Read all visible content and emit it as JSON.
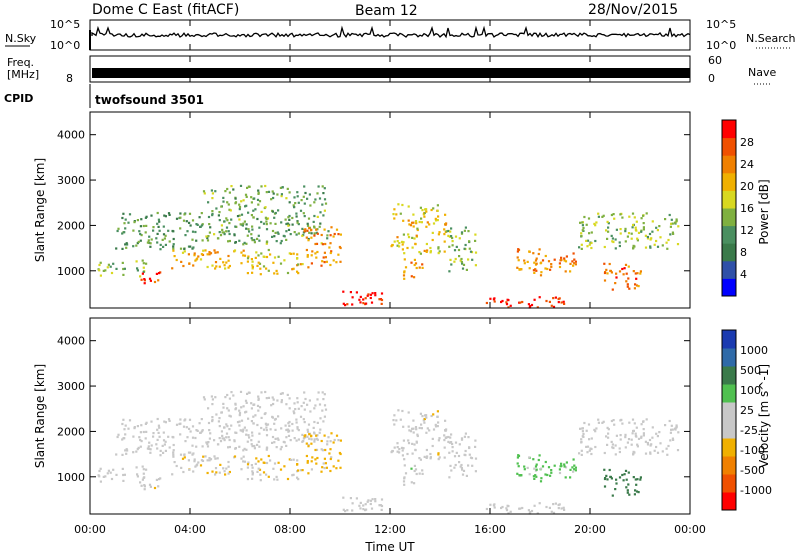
{
  "header": {
    "station": "Dome C East (fitACF)",
    "beam": "Beam 12",
    "date": "28/Nov/2015"
  },
  "noise_panel": {
    "left_label": "N.Sky",
    "left_ticks": [
      "10^5",
      "10^0"
    ],
    "right_label": "N.Search",
    "right_ticks": [
      "10^5",
      "10^0"
    ]
  },
  "freq_panel": {
    "left_label_line1": "Freq.",
    "left_label_line2": "[MHz]",
    "left_tick": "8",
    "right_label": "Nave",
    "right_ticks": [
      "60",
      "0"
    ]
  },
  "cpid": {
    "label": "CPID",
    "value": "twofsound 3501"
  },
  "x_axis": {
    "label": "Time UT",
    "ticks": [
      "00:00",
      "04:00",
      "08:00",
      "12:00",
      "16:00",
      "20:00",
      "00:00"
    ]
  },
  "colors": {
    "power_scale": [
      "#0000ff",
      "#2f50a8",
      "#3a7a4a",
      "#4a8f60",
      "#7fb040",
      "#d8d820",
      "#f0b000",
      "#f08000",
      "#f05000",
      "#ff0000"
    ],
    "velocity_scale": [
      "#ff0000",
      "#f05000",
      "#f08000",
      "#f0b000",
      "#c8c8c8",
      "#c8c8c8",
      "#50c050",
      "#3a7a4a",
      "#2f6aa8",
      "#1a3ab0"
    ]
  },
  "chart_data": [
    {
      "type": "heatmap",
      "title": "",
      "xlabel": "",
      "ylabel": "Slant Range [km]",
      "xlim": [
        0,
        24
      ],
      "ylim": [
        180,
        4500
      ],
      "yticks": [
        1000,
        2000,
        3000,
        4000
      ],
      "colorbar": {
        "label": "Power [dB]",
        "ticks": [
          "4",
          "8",
          "12",
          "16",
          "20",
          "24",
          "28"
        ],
        "range": [
          0,
          30
        ]
      },
      "echo_regions": [
        {
          "t_start": 0.3,
          "t_end": 2.2,
          "r_start": 900,
          "r_end": 1250,
          "value": 14
        },
        {
          "t_start": 1.0,
          "t_end": 4.5,
          "r_start": 1500,
          "r_end": 2300,
          "value": 10
        },
        {
          "t_start": 2.0,
          "t_end": 3.0,
          "r_start": 700,
          "r_end": 1000,
          "value": 26
        },
        {
          "t_start": 3.2,
          "t_end": 5.8,
          "r_start": 1050,
          "r_end": 1500,
          "value": 20
        },
        {
          "t_start": 4.5,
          "t_end": 9.5,
          "r_start": 1600,
          "r_end": 2900,
          "value": 12
        },
        {
          "t_start": 6.0,
          "t_end": 8.5,
          "r_start": 950,
          "r_end": 1500,
          "value": 18
        },
        {
          "t_start": 8.5,
          "t_end": 10.0,
          "r_start": 1100,
          "r_end": 2000,
          "value": 22
        },
        {
          "t_start": 10.0,
          "t_end": 11.8,
          "r_start": 200,
          "r_end": 600,
          "value": 28
        },
        {
          "t_start": 12.0,
          "t_end": 14.2,
          "r_start": 1400,
          "r_end": 2500,
          "value": 18
        },
        {
          "t_start": 12.5,
          "t_end": 13.3,
          "r_start": 800,
          "r_end": 1300,
          "value": 22
        },
        {
          "t_start": 14.2,
          "t_end": 15.4,
          "r_start": 1000,
          "r_end": 2000,
          "value": 14
        },
        {
          "t_start": 15.5,
          "t_end": 19.0,
          "r_start": 200,
          "r_end": 450,
          "value": 28
        },
        {
          "t_start": 17.0,
          "t_end": 19.5,
          "r_start": 900,
          "r_end": 1500,
          "value": 22
        },
        {
          "t_start": 19.5,
          "t_end": 23.5,
          "r_start": 1500,
          "r_end": 2300,
          "value": 14
        },
        {
          "t_start": 20.5,
          "t_end": 22.0,
          "r_start": 600,
          "r_end": 1200,
          "value": 24
        }
      ]
    },
    {
      "type": "heatmap",
      "title": "",
      "xlabel": "Time UT",
      "ylabel": "Slant Range [km]",
      "xlim": [
        0,
        24
      ],
      "ylim": [
        180,
        4500
      ],
      "yticks": [
        1000,
        2000,
        3000,
        4000
      ],
      "colorbar": {
        "label": "Velocity [m s^-1]",
        "ticks": [
          "-1000",
          "-500",
          "-100",
          "-25",
          "25",
          "100",
          "500",
          "1000"
        ],
        "range": [
          -1200,
          1200
        ]
      },
      "echo_regions": [
        {
          "t_start": 0.3,
          "t_end": 2.2,
          "r_start": 900,
          "r_end": 1250,
          "value": 0
        },
        {
          "t_start": 1.0,
          "t_end": 4.5,
          "r_start": 1500,
          "r_end": 2300,
          "value": 0
        },
        {
          "t_start": 2.0,
          "t_end": 3.0,
          "r_start": 700,
          "r_end": 1000,
          "value": -150
        },
        {
          "t_start": 3.2,
          "t_end": 5.8,
          "r_start": 1050,
          "r_end": 1500,
          "value": -200
        },
        {
          "t_start": 4.5,
          "t_end": 9.5,
          "r_start": 1600,
          "r_end": 2900,
          "value": 0
        },
        {
          "t_start": 6.0,
          "t_end": 8.5,
          "r_start": 950,
          "r_end": 1500,
          "value": -200
        },
        {
          "t_start": 8.5,
          "t_end": 10.0,
          "r_start": 1100,
          "r_end": 2000,
          "value": -300
        },
        {
          "t_start": 10.0,
          "t_end": 11.8,
          "r_start": 200,
          "r_end": 600,
          "value": 0
        },
        {
          "t_start": 12.0,
          "t_end": 14.2,
          "r_start": 1400,
          "r_end": 2500,
          "value": -150
        },
        {
          "t_start": 12.5,
          "t_end": 13.3,
          "r_start": 800,
          "r_end": 1300,
          "value": 150
        },
        {
          "t_start": 14.2,
          "t_end": 15.4,
          "r_start": 1000,
          "r_end": 2000,
          "value": 120
        },
        {
          "t_start": 15.5,
          "t_end": 19.0,
          "r_start": 200,
          "r_end": 450,
          "value": 0
        },
        {
          "t_start": 17.0,
          "t_end": 19.5,
          "r_start": 900,
          "r_end": 1500,
          "value": 300
        },
        {
          "t_start": 19.5,
          "t_end": 23.5,
          "r_start": 1500,
          "r_end": 2300,
          "value": 0
        },
        {
          "t_start": 20.5,
          "t_end": 22.0,
          "r_start": 600,
          "r_end": 1200,
          "value": 600
        }
      ]
    }
  ]
}
